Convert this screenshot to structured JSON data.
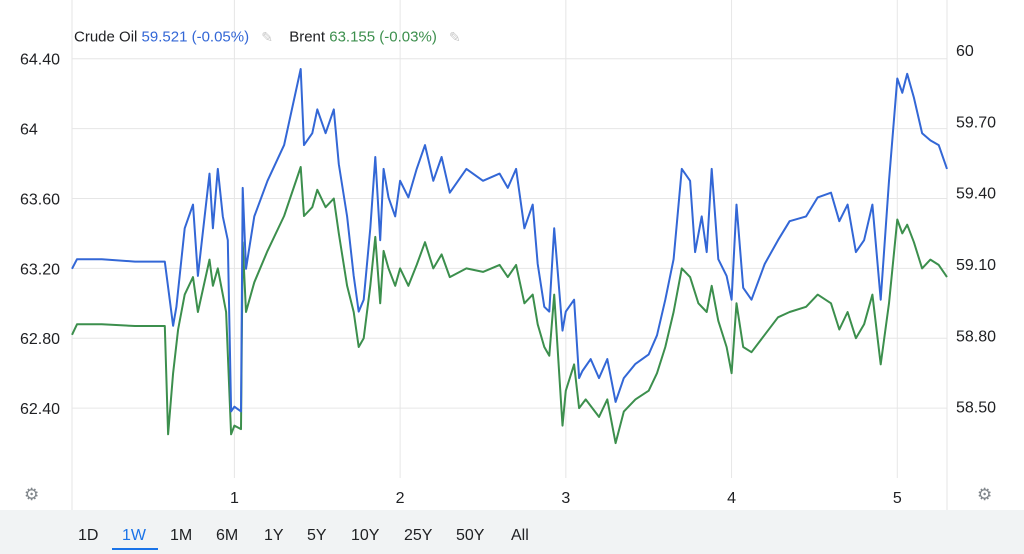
{
  "legend": [
    {
      "name": "Crude Oil",
      "value": "59.521",
      "change": "(-0.05%)",
      "color": "#3367d6",
      "icon": "pencil-icon"
    },
    {
      "name": "Brent",
      "value": "63.155",
      "change": "(-0.03%)",
      "color": "#3c8f4d",
      "icon": "pencil-icon"
    }
  ],
  "settings_icon": "gear-icon",
  "ranges": [
    "1D",
    "1W",
    "1M",
    "6M",
    "1Y",
    "5Y",
    "10Y",
    "25Y",
    "50Y",
    "All"
  ],
  "active_range": "1W",
  "colors": {
    "accent": "#1a73e8",
    "crude": "#3367d6",
    "brent": "#3c8f4d",
    "grid": "#e6e6e6"
  },
  "chart_data": {
    "type": "line",
    "grid": true,
    "legend_position": "top-left",
    "x_ticks": [
      1,
      2,
      3,
      4,
      5
    ],
    "xlim": [
      0.02,
      5.3
    ],
    "left_axis": {
      "ticks": [
        "62.40",
        "62.80",
        "63.20",
        "63.60",
        "64",
        "64.40"
      ],
      "ylim": [
        62.0,
        64.45
      ]
    },
    "right_axis": {
      "ticks": [
        "58.50",
        "58.80",
        "59.10",
        "59.40",
        "59.70",
        "60"
      ],
      "ylim": [
        58.2,
        60.0
      ]
    },
    "series": [
      {
        "name": "Crude Oil",
        "axis": "right",
        "color": "#3367d6",
        "points": [
          [
            0.02,
            59.08
          ],
          [
            0.05,
            59.12
          ],
          [
            0.2,
            59.12
          ],
          [
            0.4,
            59.11
          ],
          [
            0.58,
            59.11
          ],
          [
            0.63,
            58.84
          ],
          [
            0.65,
            58.92
          ],
          [
            0.7,
            59.25
          ],
          [
            0.75,
            59.35
          ],
          [
            0.78,
            59.05
          ],
          [
            0.85,
            59.48
          ],
          [
            0.87,
            59.25
          ],
          [
            0.9,
            59.5
          ],
          [
            0.93,
            59.3
          ],
          [
            0.96,
            59.2
          ],
          [
            0.98,
            58.48
          ],
          [
            1.0,
            58.5
          ],
          [
            1.04,
            58.48
          ],
          [
            1.05,
            59.42
          ],
          [
            1.07,
            59.08
          ],
          [
            1.12,
            59.3
          ],
          [
            1.2,
            59.45
          ],
          [
            1.3,
            59.6
          ],
          [
            1.4,
            59.92
          ],
          [
            1.42,
            59.6
          ],
          [
            1.47,
            59.65
          ],
          [
            1.5,
            59.75
          ],
          [
            1.55,
            59.65
          ],
          [
            1.6,
            59.75
          ],
          [
            1.63,
            59.52
          ],
          [
            1.68,
            59.3
          ],
          [
            1.72,
            59.05
          ],
          [
            1.75,
            58.9
          ],
          [
            1.78,
            58.95
          ],
          [
            1.82,
            59.25
          ],
          [
            1.85,
            59.55
          ],
          [
            1.88,
            59.2
          ],
          [
            1.9,
            59.5
          ],
          [
            1.93,
            59.38
          ],
          [
            1.97,
            59.3
          ],
          [
            2.0,
            59.45
          ],
          [
            2.05,
            59.38
          ],
          [
            2.1,
            59.5
          ],
          [
            2.15,
            59.6
          ],
          [
            2.2,
            59.45
          ],
          [
            2.25,
            59.55
          ],
          [
            2.3,
            59.4
          ],
          [
            2.4,
            59.5
          ],
          [
            2.5,
            59.45
          ],
          [
            2.6,
            59.48
          ],
          [
            2.65,
            59.42
          ],
          [
            2.7,
            59.5
          ],
          [
            2.75,
            59.25
          ],
          [
            2.8,
            59.35
          ],
          [
            2.83,
            59.1
          ],
          [
            2.87,
            58.92
          ],
          [
            2.9,
            58.9
          ],
          [
            2.93,
            59.25
          ],
          [
            2.98,
            58.82
          ],
          [
            3.0,
            58.9
          ],
          [
            3.05,
            58.95
          ],
          [
            3.08,
            58.62
          ],
          [
            3.1,
            58.65
          ],
          [
            3.15,
            58.7
          ],
          [
            3.2,
            58.62
          ],
          [
            3.25,
            58.7
          ],
          [
            3.3,
            58.52
          ],
          [
            3.35,
            58.62
          ],
          [
            3.42,
            58.68
          ],
          [
            3.5,
            58.72
          ],
          [
            3.55,
            58.8
          ],
          [
            3.6,
            58.95
          ],
          [
            3.65,
            59.12
          ],
          [
            3.7,
            59.5
          ],
          [
            3.75,
            59.45
          ],
          [
            3.78,
            59.15
          ],
          [
            3.82,
            59.3
          ],
          [
            3.85,
            59.15
          ],
          [
            3.88,
            59.5
          ],
          [
            3.92,
            59.12
          ],
          [
            3.97,
            59.05
          ],
          [
            4.0,
            58.95
          ],
          [
            4.03,
            59.35
          ],
          [
            4.07,
            59.0
          ],
          [
            4.12,
            58.95
          ],
          [
            4.2,
            59.1
          ],
          [
            4.28,
            59.2
          ],
          [
            4.35,
            59.28
          ],
          [
            4.45,
            59.3
          ],
          [
            4.52,
            59.38
          ],
          [
            4.6,
            59.4
          ],
          [
            4.65,
            59.28
          ],
          [
            4.7,
            59.35
          ],
          [
            4.75,
            59.15
          ],
          [
            4.8,
            59.2
          ],
          [
            4.85,
            59.35
          ],
          [
            4.9,
            58.95
          ],
          [
            4.95,
            59.45
          ],
          [
            5.0,
            59.88
          ],
          [
            5.03,
            59.82
          ],
          [
            5.06,
            59.9
          ],
          [
            5.1,
            59.8
          ],
          [
            5.15,
            59.65
          ],
          [
            5.2,
            59.62
          ],
          [
            5.25,
            59.6
          ],
          [
            5.3,
            59.5
          ]
        ]
      },
      {
        "name": "Brent",
        "axis": "left",
        "color": "#3c8f4d",
        "points": [
          [
            0.02,
            62.82
          ],
          [
            0.05,
            62.88
          ],
          [
            0.2,
            62.88
          ],
          [
            0.4,
            62.87
          ],
          [
            0.58,
            62.87
          ],
          [
            0.6,
            62.25
          ],
          [
            0.63,
            62.6
          ],
          [
            0.66,
            62.85
          ],
          [
            0.7,
            63.05
          ],
          [
            0.75,
            63.15
          ],
          [
            0.78,
            62.95
          ],
          [
            0.85,
            63.25
          ],
          [
            0.87,
            63.1
          ],
          [
            0.9,
            63.2
          ],
          [
            0.93,
            63.05
          ],
          [
            0.95,
            62.95
          ],
          [
            0.98,
            62.25
          ],
          [
            1.0,
            62.3
          ],
          [
            1.04,
            62.28
          ],
          [
            1.05,
            63.35
          ],
          [
            1.07,
            62.95
          ],
          [
            1.12,
            63.12
          ],
          [
            1.2,
            63.3
          ],
          [
            1.3,
            63.5
          ],
          [
            1.4,
            63.78
          ],
          [
            1.42,
            63.5
          ],
          [
            1.47,
            63.55
          ],
          [
            1.5,
            63.65
          ],
          [
            1.55,
            63.55
          ],
          [
            1.6,
            63.6
          ],
          [
            1.63,
            63.4
          ],
          [
            1.68,
            63.1
          ],
          [
            1.72,
            62.95
          ],
          [
            1.75,
            62.75
          ],
          [
            1.78,
            62.8
          ],
          [
            1.82,
            63.1
          ],
          [
            1.85,
            63.38
          ],
          [
            1.88,
            63.0
          ],
          [
            1.9,
            63.3
          ],
          [
            1.93,
            63.2
          ],
          [
            1.97,
            63.1
          ],
          [
            2.0,
            63.2
          ],
          [
            2.05,
            63.1
          ],
          [
            2.1,
            63.22
          ],
          [
            2.15,
            63.35
          ],
          [
            2.2,
            63.2
          ],
          [
            2.25,
            63.28
          ],
          [
            2.3,
            63.15
          ],
          [
            2.4,
            63.2
          ],
          [
            2.5,
            63.18
          ],
          [
            2.6,
            63.22
          ],
          [
            2.65,
            63.15
          ],
          [
            2.7,
            63.22
          ],
          [
            2.75,
            63.0
          ],
          [
            2.8,
            63.05
          ],
          [
            2.83,
            62.88
          ],
          [
            2.87,
            62.75
          ],
          [
            2.9,
            62.7
          ],
          [
            2.93,
            63.05
          ],
          [
            2.98,
            62.3
          ],
          [
            3.0,
            62.5
          ],
          [
            3.05,
            62.65
          ],
          [
            3.08,
            62.4
          ],
          [
            3.12,
            62.45
          ],
          [
            3.2,
            62.35
          ],
          [
            3.25,
            62.45
          ],
          [
            3.3,
            62.2
          ],
          [
            3.35,
            62.38
          ],
          [
            3.42,
            62.45
          ],
          [
            3.5,
            62.5
          ],
          [
            3.55,
            62.6
          ],
          [
            3.6,
            62.75
          ],
          [
            3.65,
            62.95
          ],
          [
            3.7,
            63.2
          ],
          [
            3.75,
            63.15
          ],
          [
            3.8,
            63.0
          ],
          [
            3.85,
            62.95
          ],
          [
            3.88,
            63.1
          ],
          [
            3.92,
            62.9
          ],
          [
            3.97,
            62.75
          ],
          [
            4.0,
            62.6
          ],
          [
            4.03,
            63.0
          ],
          [
            4.07,
            62.75
          ],
          [
            4.12,
            62.72
          ],
          [
            4.2,
            62.82
          ],
          [
            4.28,
            62.92
          ],
          [
            4.35,
            62.95
          ],
          [
            4.45,
            62.98
          ],
          [
            4.52,
            63.05
          ],
          [
            4.6,
            63.0
          ],
          [
            4.65,
            62.85
          ],
          [
            4.7,
            62.95
          ],
          [
            4.75,
            62.8
          ],
          [
            4.8,
            62.88
          ],
          [
            4.85,
            63.05
          ],
          [
            4.9,
            62.65
          ],
          [
            4.95,
            63.0
          ],
          [
            5.0,
            63.48
          ],
          [
            5.03,
            63.4
          ],
          [
            5.06,
            63.45
          ],
          [
            5.1,
            63.35
          ],
          [
            5.15,
            63.2
          ],
          [
            5.2,
            63.25
          ],
          [
            5.25,
            63.22
          ],
          [
            5.3,
            63.15
          ]
        ]
      }
    ]
  }
}
